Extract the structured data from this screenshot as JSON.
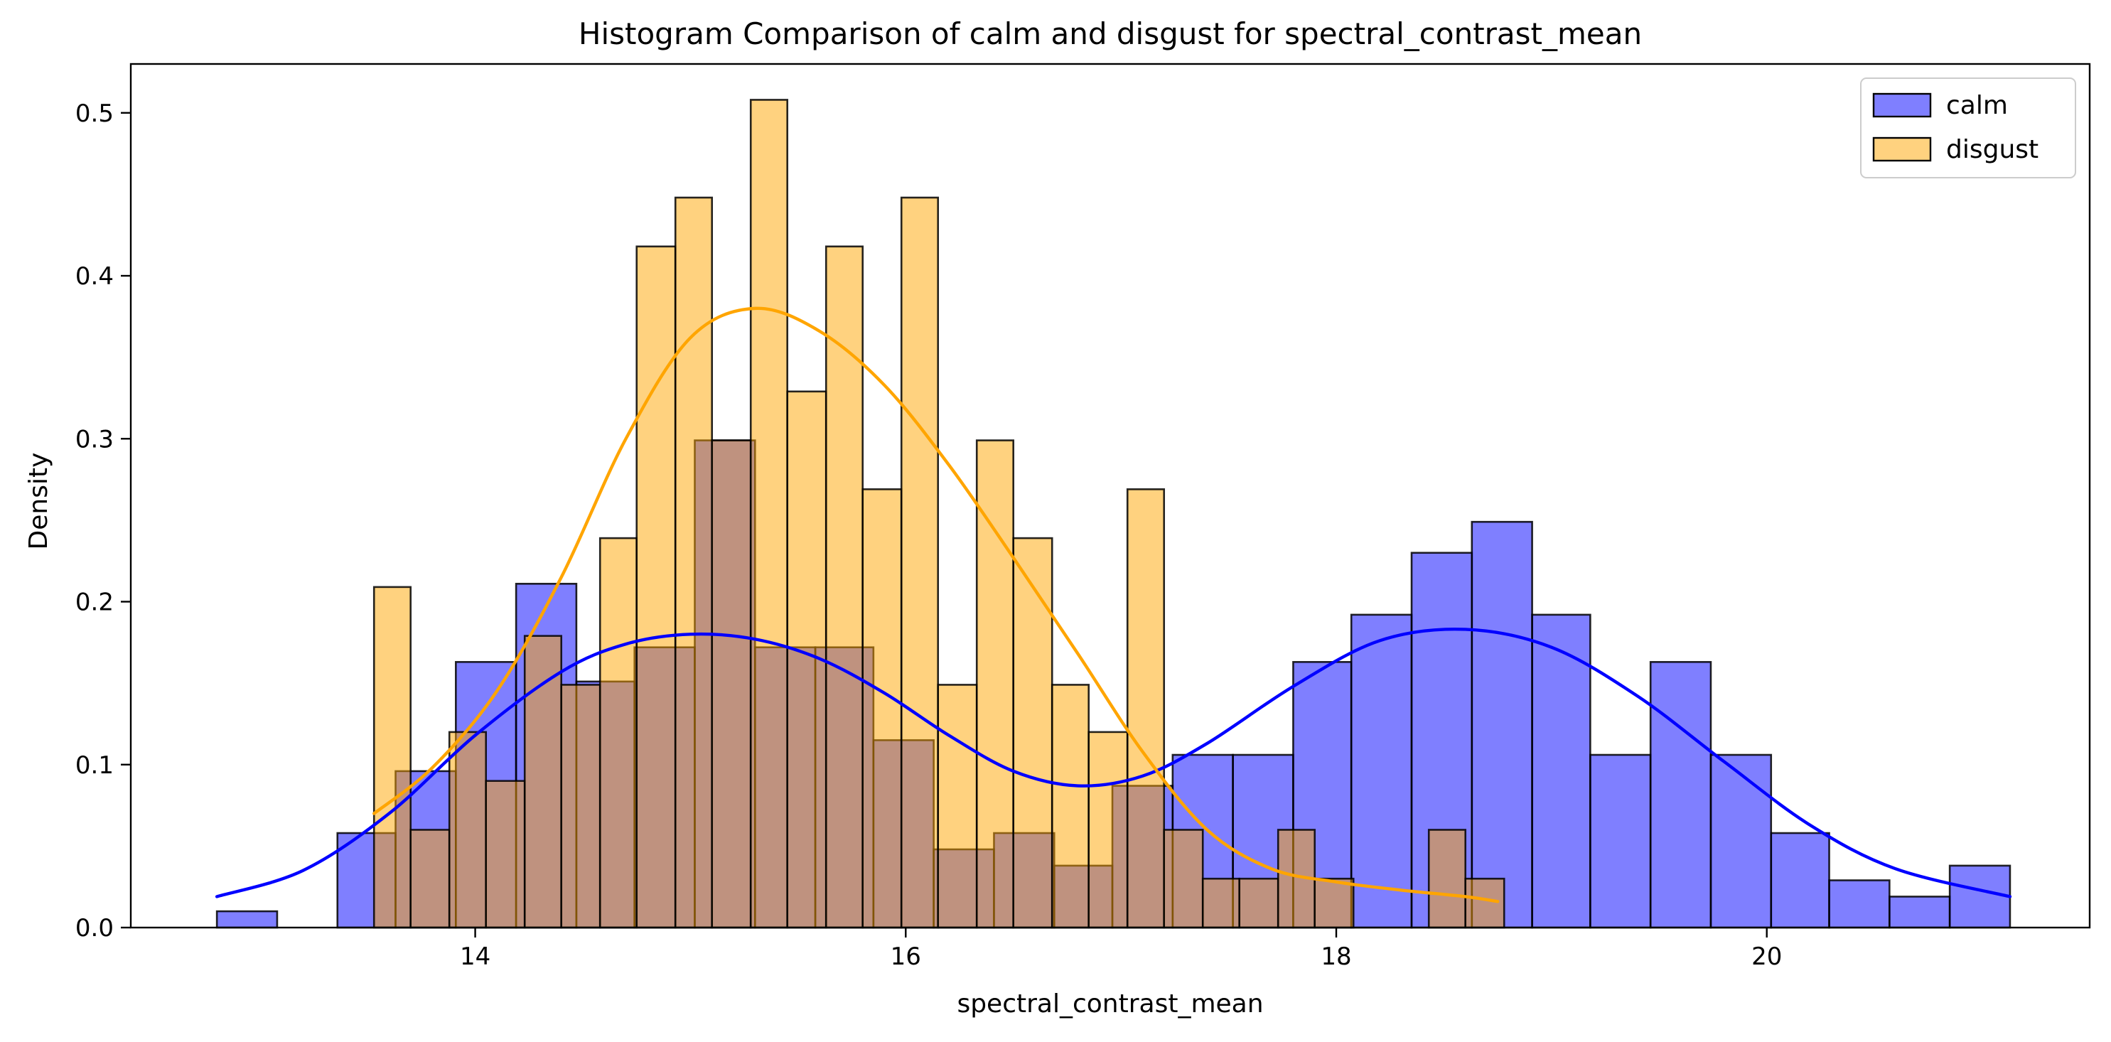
{
  "chart_data": {
    "type": "bar",
    "title": "Histogram Comparison of calm and disgust for spectral_contrast_mean",
    "xlabel": "spectral_contrast_mean",
    "ylabel": "Density",
    "xlim": [
      12.4,
      21.5
    ],
    "ylim": [
      0,
      0.53
    ],
    "xticks": [
      14,
      16,
      18,
      20
    ],
    "yticks": [
      0.0,
      0.1,
      0.2,
      0.3,
      0.4,
      0.5
    ],
    "xtick_labels": [
      "14",
      "16",
      "18",
      "20"
    ],
    "ytick_labels": [
      "0.0",
      "0.1",
      "0.2",
      "0.3",
      "0.4",
      "0.5"
    ],
    "grid": false,
    "legend_position": "top-right",
    "series": [
      {
        "name": "calm",
        "color": "#0000ff",
        "alpha": 0.5,
        "bins": [
          [
            12.8,
            13.08,
            0.01
          ],
          [
            13.08,
            13.36,
            0.0
          ],
          [
            13.36,
            13.63,
            0.058
          ],
          [
            13.63,
            13.91,
            0.096
          ],
          [
            13.91,
            14.19,
            0.163
          ],
          [
            14.19,
            14.47,
            0.211
          ],
          [
            14.47,
            14.74,
            0.151
          ],
          [
            14.74,
            15.02,
            0.172
          ],
          [
            15.02,
            15.3,
            0.299
          ],
          [
            15.3,
            15.58,
            0.172
          ],
          [
            15.58,
            15.85,
            0.172
          ],
          [
            15.85,
            16.13,
            0.115
          ],
          [
            16.13,
            16.41,
            0.048
          ],
          [
            16.41,
            16.69,
            0.058
          ],
          [
            16.69,
            16.96,
            0.038
          ],
          [
            16.96,
            17.24,
            0.087
          ],
          [
            17.24,
            17.52,
            0.106
          ],
          [
            17.52,
            17.8,
            0.106
          ],
          [
            17.8,
            18.07,
            0.163
          ],
          [
            18.07,
            18.35,
            0.192
          ],
          [
            18.35,
            18.63,
            0.23
          ],
          [
            18.63,
            18.91,
            0.249
          ],
          [
            18.91,
            19.18,
            0.192
          ],
          [
            19.18,
            19.46,
            0.106
          ],
          [
            19.46,
            19.74,
            0.163
          ],
          [
            19.74,
            20.02,
            0.106
          ],
          [
            20.02,
            20.29,
            0.058
          ],
          [
            20.29,
            20.57,
            0.029
          ],
          [
            20.57,
            20.85,
            0.019
          ],
          [
            20.85,
            21.13,
            0.038
          ]
        ],
        "kde": [
          [
            12.8,
            0.019
          ],
          [
            13.2,
            0.035
          ],
          [
            13.6,
            0.07
          ],
          [
            14.0,
            0.118
          ],
          [
            14.4,
            0.157
          ],
          [
            14.7,
            0.174
          ],
          [
            15.0,
            0.18
          ],
          [
            15.3,
            0.177
          ],
          [
            15.6,
            0.165
          ],
          [
            15.9,
            0.144
          ],
          [
            16.2,
            0.118
          ],
          [
            16.5,
            0.096
          ],
          [
            16.8,
            0.087
          ],
          [
            17.1,
            0.093
          ],
          [
            17.4,
            0.113
          ],
          [
            17.8,
            0.148
          ],
          [
            18.2,
            0.176
          ],
          [
            18.6,
            0.183
          ],
          [
            19.0,
            0.172
          ],
          [
            19.4,
            0.142
          ],
          [
            19.8,
            0.102
          ],
          [
            20.2,
            0.063
          ],
          [
            20.6,
            0.036
          ],
          [
            21.13,
            0.019
          ]
        ]
      },
      {
        "name": "disgust",
        "color": "#ffa500",
        "alpha": 0.5,
        "bins": [
          [
            13.53,
            13.7,
            0.209
          ],
          [
            13.7,
            13.88,
            0.06
          ],
          [
            13.88,
            14.05,
            0.12
          ],
          [
            14.05,
            14.23,
            0.09
          ],
          [
            14.23,
            14.4,
            0.179
          ],
          [
            14.4,
            14.58,
            0.149
          ],
          [
            14.58,
            14.75,
            0.239
          ],
          [
            14.75,
            14.93,
            0.418
          ],
          [
            14.93,
            15.1,
            0.448
          ],
          [
            15.1,
            15.28,
            0.299
          ],
          [
            15.28,
            15.45,
            0.508
          ],
          [
            15.45,
            15.63,
            0.329
          ],
          [
            15.63,
            15.8,
            0.418
          ],
          [
            15.8,
            15.98,
            0.269
          ],
          [
            15.98,
            16.15,
            0.448
          ],
          [
            16.15,
            16.33,
            0.149
          ],
          [
            16.33,
            16.5,
            0.299
          ],
          [
            16.5,
            16.68,
            0.239
          ],
          [
            16.68,
            16.85,
            0.149
          ],
          [
            16.85,
            17.03,
            0.12
          ],
          [
            17.03,
            17.2,
            0.269
          ],
          [
            17.2,
            17.38,
            0.06
          ],
          [
            17.38,
            17.55,
            0.03
          ],
          [
            17.55,
            17.73,
            0.03
          ],
          [
            17.73,
            17.9,
            0.06
          ],
          [
            17.9,
            18.08,
            0.03
          ],
          [
            18.08,
            18.25,
            0.0
          ],
          [
            18.25,
            18.43,
            0.0
          ],
          [
            18.43,
            18.6,
            0.06
          ],
          [
            18.6,
            18.78,
            0.03
          ]
        ],
        "kde": [
          [
            13.53,
            0.07
          ],
          [
            13.8,
            0.098
          ],
          [
            14.1,
            0.145
          ],
          [
            14.4,
            0.215
          ],
          [
            14.7,
            0.3
          ],
          [
            15.0,
            0.362
          ],
          [
            15.3,
            0.38
          ],
          [
            15.6,
            0.366
          ],
          [
            15.9,
            0.333
          ],
          [
            16.2,
            0.284
          ],
          [
            16.5,
            0.227
          ],
          [
            16.8,
            0.168
          ],
          [
            17.1,
            0.108
          ],
          [
            17.4,
            0.06
          ],
          [
            17.7,
            0.036
          ],
          [
            18.0,
            0.028
          ],
          [
            18.3,
            0.023
          ],
          [
            18.6,
            0.019
          ],
          [
            18.75,
            0.016
          ]
        ]
      }
    ]
  }
}
